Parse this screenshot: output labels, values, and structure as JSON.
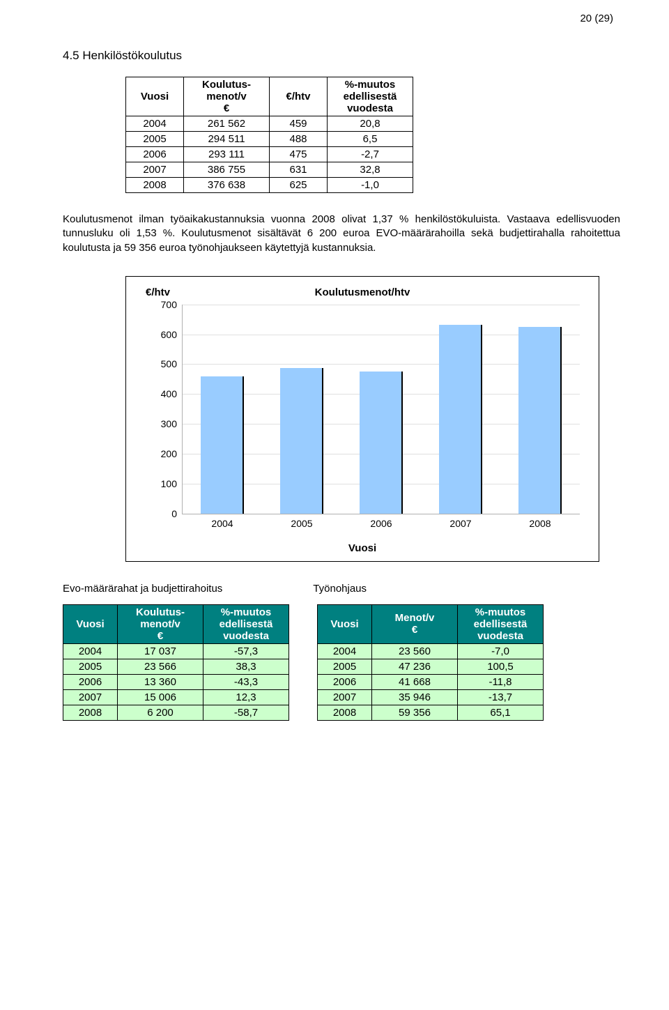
{
  "page_number": "20 (29)",
  "section_heading": "4.5 Henkilöstökoulutus",
  "table1": {
    "headers": [
      "Vuosi",
      "Koulutus-\nmenot/v\n€",
      "€/htv",
      "%-muutos\nedellisestä\nvuodesta"
    ],
    "rows": [
      [
        "2004",
        "261 562",
        "459",
        "20,8"
      ],
      [
        "2005",
        "294 511",
        "488",
        "6,5"
      ],
      [
        "2006",
        "293 111",
        "475",
        "-2,7"
      ],
      [
        "2007",
        "386 755",
        "631",
        "32,8"
      ],
      [
        "2008",
        "376 638",
        "625",
        "-1,0"
      ]
    ]
  },
  "paragraph": "Koulutusmenot ilman työaikakustannuksia vuonna 2008 olivat 1,37 % henkilöstökuluista. Vastaava edellisvuoden tunnusluku oli 1,53 %. Koulutusmenot sisältävät 6 200 euroa EVO-määrärahoilla sekä budjettirahalla rahoitettua koulutusta ja 59 356 euroa työnohjaukseen käytettyjä kustannuksia.",
  "chart": {
    "type": "bar",
    "y_axis_title": "€/htv",
    "chart_title": "Koulutusmenot/htv",
    "x_axis_title": "Vuosi",
    "categories": [
      "2004",
      "2005",
      "2006",
      "2007",
      "2008"
    ],
    "values": [
      459,
      488,
      475,
      631,
      625
    ],
    "ymax": 700,
    "ytick_step": 100,
    "yticks": [
      "0",
      "100",
      "200",
      "300",
      "400",
      "500",
      "600",
      "700"
    ],
    "bar_color": "#99ccff",
    "bar_border_color": "#000000",
    "bar_width_ratio": 0.55,
    "grid_color": "#e0e0e0",
    "axis_color": "#b0b0b0",
    "background": "#ffffff",
    "font_family": "Arial",
    "title_fontsize": 15,
    "label_fontsize": 14
  },
  "subtitles": {
    "left": "Evo-määrärahat ja budjettirahoitus",
    "right": "Työnohjaus"
  },
  "table_left": {
    "header_bg": "#008080",
    "row_bg": "#ccffcc",
    "headers": [
      "Vuosi",
      "Koulutus-\nmenot/v\n€",
      "%-muutos\nedellisestä\nvuodesta"
    ],
    "rows": [
      [
        "2004",
        "17 037",
        "-57,3"
      ],
      [
        "2005",
        "23 566",
        "38,3"
      ],
      [
        "2006",
        "13 360",
        "-43,3"
      ],
      [
        "2007",
        "15 006",
        "12,3"
      ],
      [
        "2008",
        "6 200",
        "-58,7"
      ]
    ]
  },
  "table_right": {
    "header_bg": "#008080",
    "row_bg": "#ccffcc",
    "headers": [
      "Vuosi",
      "Menot/v\n€",
      "%-muutos\nedellisestä\nvuodesta"
    ],
    "rows": [
      [
        "2004",
        "23 560",
        "-7,0"
      ],
      [
        "2005",
        "47 236",
        "100,5"
      ],
      [
        "2006",
        "41 668",
        "-11,8"
      ],
      [
        "2007",
        "35 946",
        "-13,7"
      ],
      [
        "2008",
        "59 356",
        "65,1"
      ]
    ]
  }
}
